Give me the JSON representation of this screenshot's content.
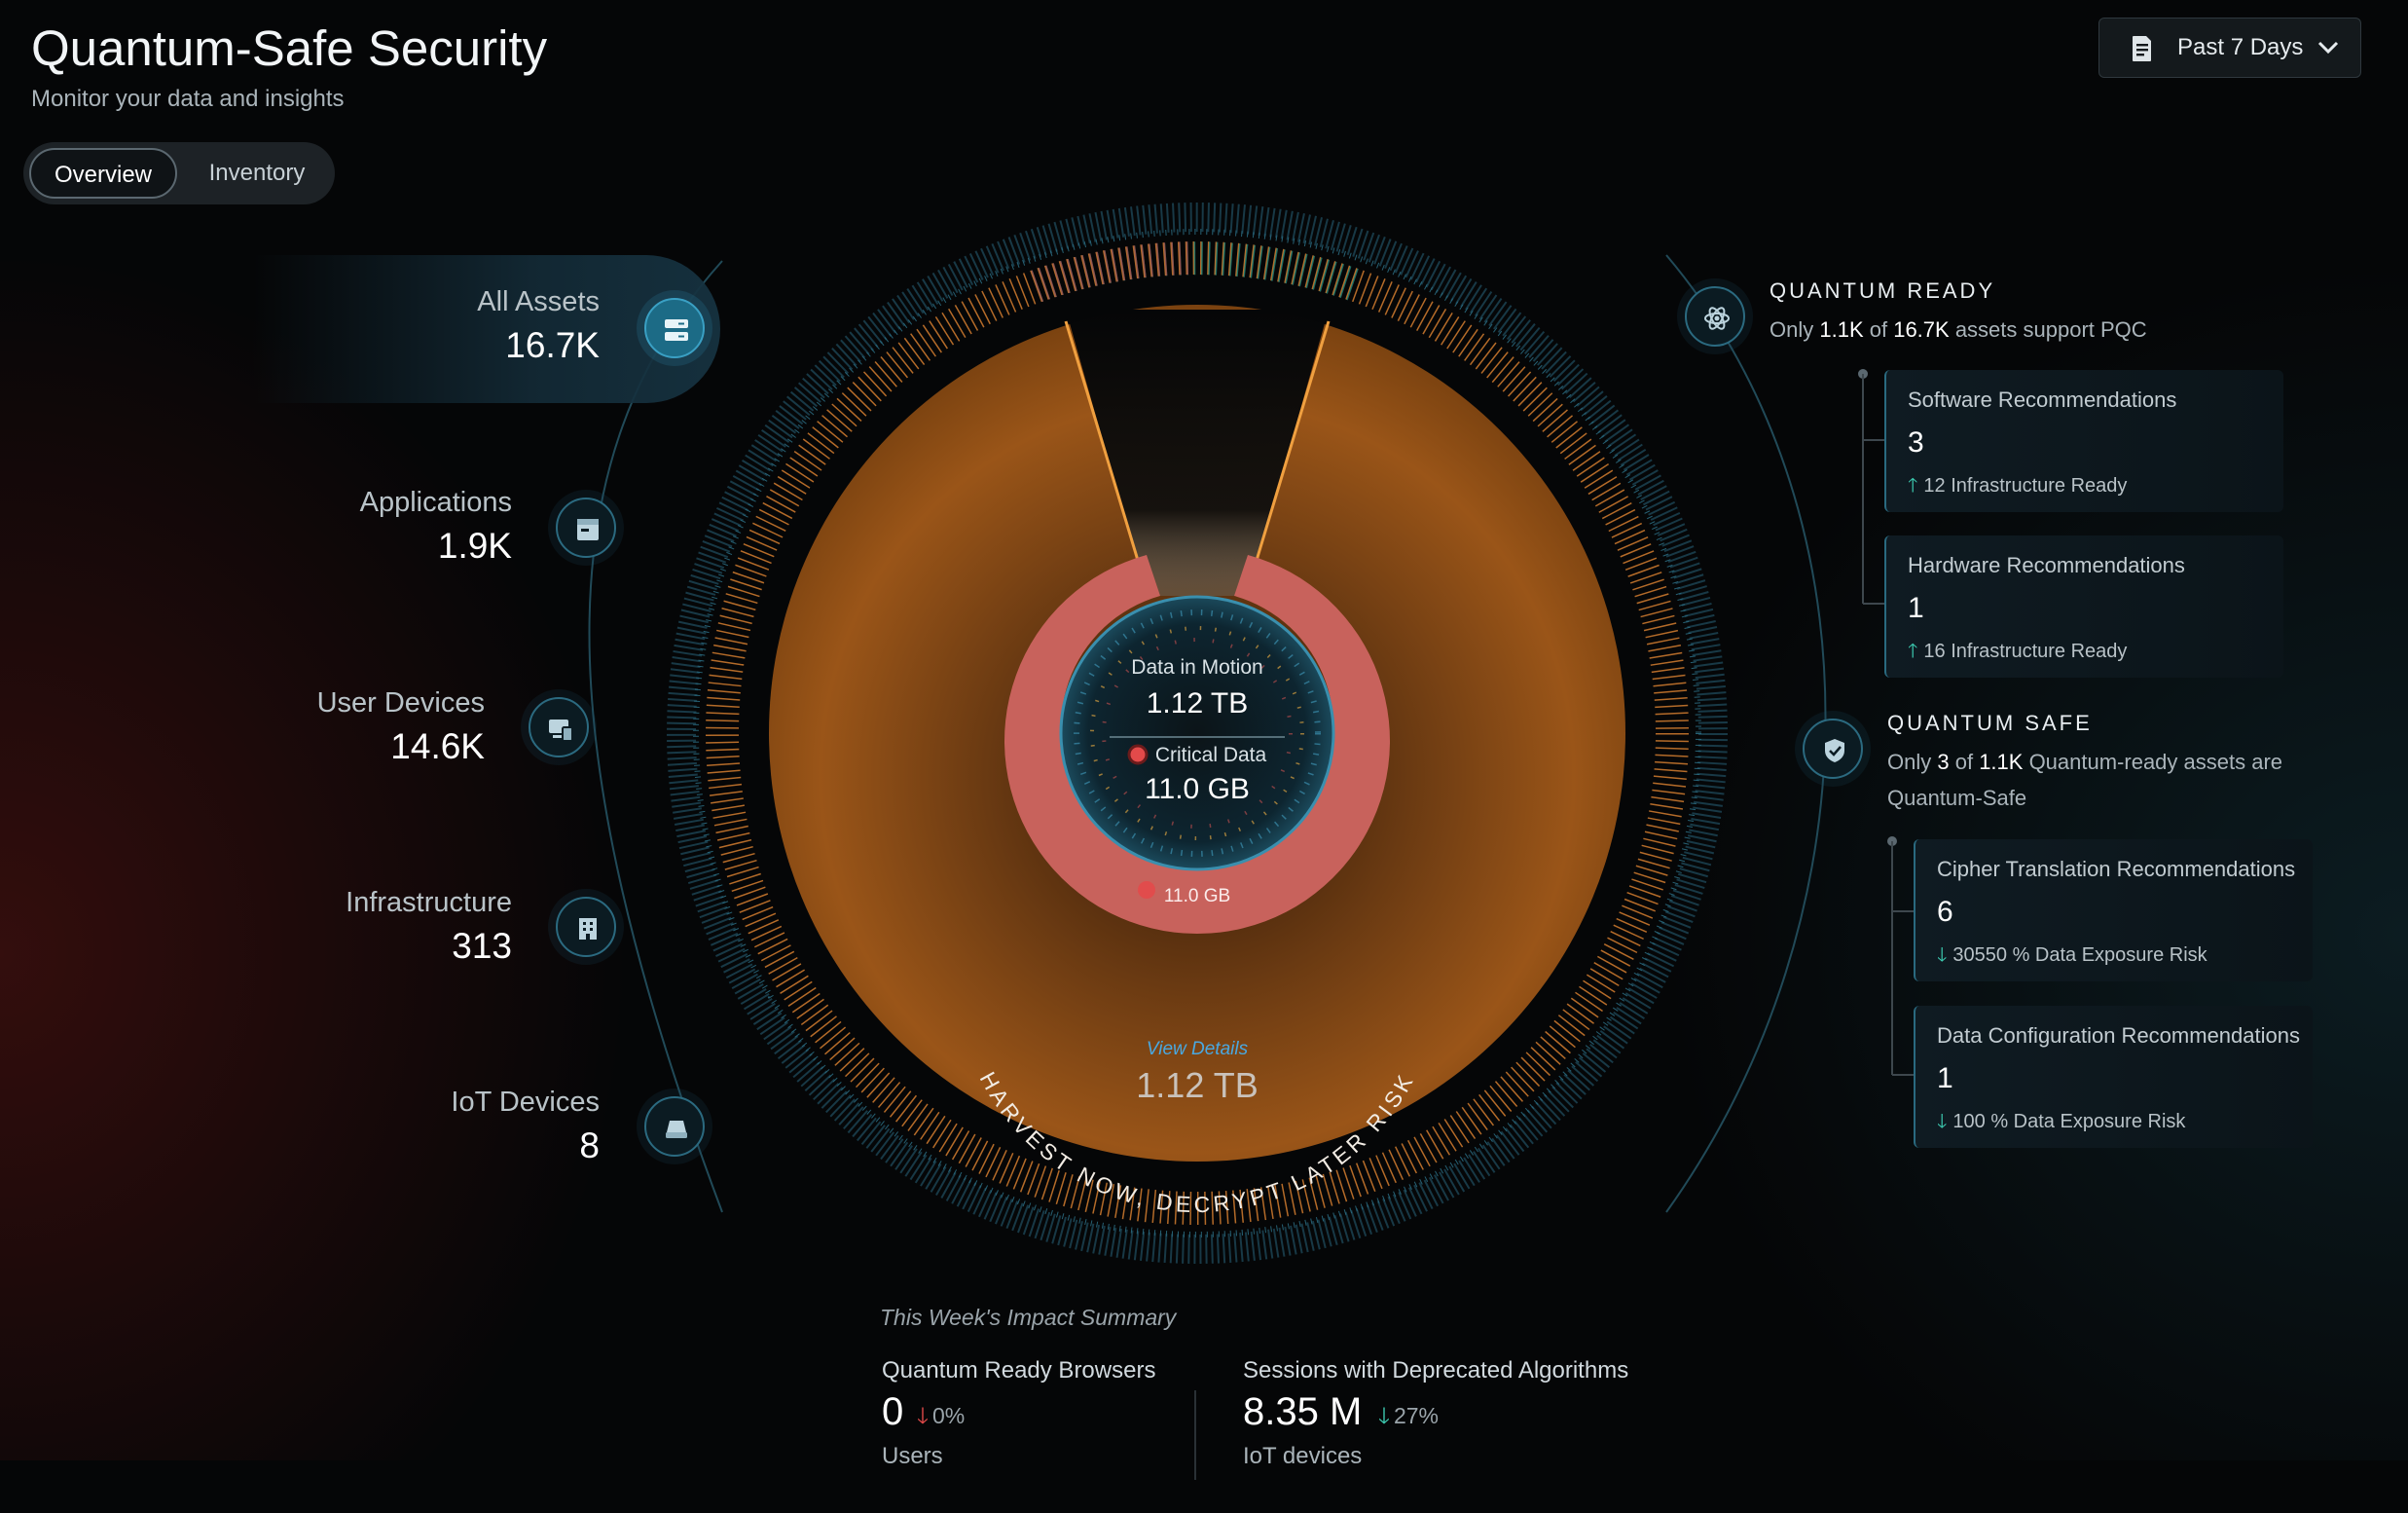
{
  "header": {
    "title": "Quantum-Safe Security",
    "subtitle": "Monitor your data and insights"
  },
  "tabs": [
    {
      "label": "Overview",
      "active": true
    },
    {
      "label": "Inventory",
      "active": false
    }
  ],
  "period_selector": {
    "label": "Past 7 Days",
    "icon": "document-icon"
  },
  "assets": [
    {
      "label": "All Assets",
      "value": "16.7K",
      "icon": "server-icon",
      "active": true
    },
    {
      "label": "Applications",
      "value": "1.9K",
      "icon": "app-window-icon"
    },
    {
      "label": "User Devices",
      "value": "14.6K",
      "icon": "devices-icon"
    },
    {
      "label": "Infrastructure",
      "value": "313",
      "icon": "building-icon"
    },
    {
      "label": "IoT Devices",
      "value": "8",
      "icon": "iot-device-icon"
    }
  ],
  "center": {
    "motion_label": "Data in Motion",
    "motion_value": "1.12 TB",
    "critical_label": "Critical Data",
    "critical_value": "11.0 GB",
    "ring_label": "11.0 GB",
    "view_details": "View Details",
    "risk_value": "1.12 TB",
    "arc_text": "HARVEST NOW, DECRYPT LATER RISK"
  },
  "quantum_ready": {
    "heading": "QUANTUM READY",
    "sub_prefix": "Only ",
    "sub_a": "1.1K",
    "sub_mid": " of ",
    "sub_b": "16.7K",
    "sub_suffix": " assets support PQC",
    "icon": "atom-icon",
    "cards": [
      {
        "title": "Software Recommendations",
        "value": "3",
        "foot": "12 Infrastructure Ready",
        "trend": "up"
      },
      {
        "title": "Hardware Recommendations",
        "value": "1",
        "foot": "16 Infrastructure Ready",
        "trend": "up"
      }
    ]
  },
  "quantum_safe": {
    "heading": "QUANTUM SAFE",
    "sub_prefix": "Only ",
    "sub_a": "3",
    "sub_mid": " of ",
    "sub_b": "1.1K",
    "sub_suffix": " Quantum-ready assets are",
    "sub_line2": "Quantum-Safe",
    "icon": "shield-check-icon",
    "cards": [
      {
        "title": "Cipher Translation Recommendations",
        "value": "6",
        "foot": "30550 % Data Exposure Risk",
        "trend": "down"
      },
      {
        "title": "Data Configuration Recommendations",
        "value": "1",
        "foot": "100 % Data Exposure Risk",
        "trend": "down"
      }
    ]
  },
  "summary": {
    "title": "This Week's Impact Summary",
    "items": [
      {
        "label": "Quantum Ready Browsers",
        "value": "0",
        "delta": "0%",
        "trend": "down",
        "unit": "Users"
      },
      {
        "label": "Sessions with Deprecated Algorithms",
        "value": "8.35 M",
        "delta": "27%",
        "trend": "down",
        "unit": "IoT devices"
      }
    ]
  },
  "colors": {
    "accent": "#3aa0c4",
    "critical": "#e34a4a",
    "risk_fill": "#b5651e",
    "ring_critical": "#c8625c",
    "trend_good": "#3ccab0"
  }
}
